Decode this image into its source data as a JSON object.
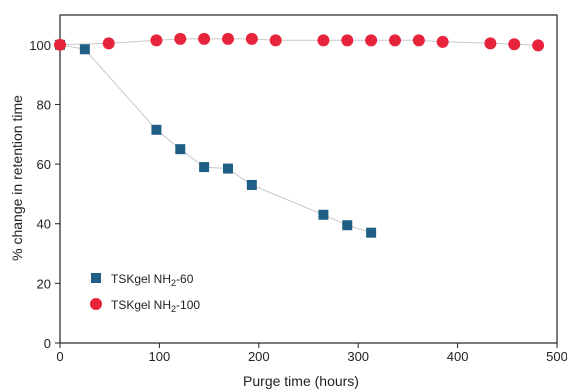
{
  "chart_data": {
    "type": "scatter",
    "title": "",
    "xlabel": "Purge time (hours)",
    "ylabel": "% change in retention time",
    "xlim": [
      0,
      500
    ],
    "ylim": [
      0,
      110
    ],
    "x_ticks": [
      "0",
      "100",
      "200",
      "300",
      "400",
      "500"
    ],
    "y_ticks": [
      "0",
      "20",
      "40",
      "60",
      "80",
      "100"
    ],
    "grid": false,
    "legend_position": "bottom-left",
    "series": [
      {
        "name": "TSKgel NH2-60",
        "name_base": "TSKgel NH",
        "name_sub": "2",
        "name_suffix": "-60",
        "marker": "square",
        "color": "#1f5f86",
        "x": [
          0,
          25,
          97,
          121,
          145,
          169,
          193,
          265,
          289,
          313
        ],
        "y": [
          100,
          98.5,
          71.5,
          65,
          59,
          58.5,
          53,
          43,
          39.5,
          37
        ]
      },
      {
        "name": "TSKgel NH2-100",
        "name_base": "TSKgel NH",
        "name_sub": "2",
        "name_suffix": "-100",
        "marker": "circle",
        "color": "#e8243c",
        "x": [
          0,
          49,
          97,
          121,
          145,
          169,
          193,
          217,
          265,
          289,
          313,
          337,
          361,
          385,
          433,
          457,
          481
        ],
        "y": [
          100,
          100.5,
          101.5,
          102,
          102,
          102,
          102,
          101.5,
          101.5,
          101.5,
          101.5,
          101.5,
          101.5,
          101,
          100.5,
          100.2,
          99.8
        ]
      }
    ],
    "line_color": "#c8c8c8"
  }
}
